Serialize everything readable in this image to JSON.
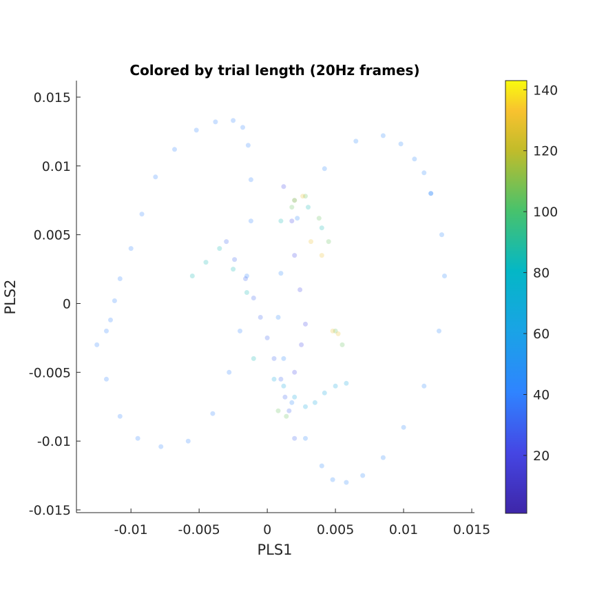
{
  "chart_data": {
    "type": "scatter",
    "title": "Colored by trial length (20Hz frames)",
    "xlabel": "PLS1",
    "ylabel": "PLS2",
    "xlim": [
      -0.014,
      0.0152
    ],
    "ylim": [
      -0.0152,
      0.0162
    ],
    "x_ticks": [
      -0.01,
      -0.005,
      0,
      0.005,
      0.01,
      0.015
    ],
    "x_tick_labels": [
      "-0.01",
      "-0.005",
      "0",
      "0.005",
      "0.01",
      "0.015"
    ],
    "y_ticks": [
      -0.015,
      -0.01,
      -0.005,
      0,
      0.005,
      0.01,
      0.015
    ],
    "y_tick_labels": [
      "-0.015",
      "-0.01",
      "-0.005",
      "0",
      "0.005",
      "0.01",
      "0.015"
    ],
    "colorbar": {
      "colormap": "parula",
      "range": [
        1,
        143
      ],
      "ticks": [
        20,
        40,
        60,
        80,
        100,
        120,
        140
      ],
      "tick_labels": [
        "20",
        "40",
        "60",
        "80",
        "100",
        "120",
        "140"
      ]
    },
    "marker_alpha": 0.25,
    "grid": false,
    "series": [
      {
        "trial_length": 40,
        "x": [
          -0.0125,
          -0.0118,
          -0.0108,
          -0.0095,
          -0.0078,
          -0.0058,
          -0.004,
          -0.0028,
          -0.002,
          -0.0015,
          -0.0012,
          -0.0012,
          -0.0014,
          -0.0018,
          -0.0025,
          -0.0038,
          -0.0052,
          -0.0068,
          -0.0082,
          -0.0092,
          -0.01,
          -0.0108,
          -0.0112,
          -0.0115,
          -0.0118
        ],
        "y": [
          -0.003,
          -0.0055,
          -0.0082,
          -0.0098,
          -0.0104,
          -0.01,
          -0.008,
          -0.005,
          -0.002,
          0.002,
          0.006,
          0.009,
          0.0115,
          0.0128,
          0.0133,
          0.0132,
          0.0126,
          0.0112,
          0.0092,
          0.0065,
          0.004,
          0.0018,
          0.0002,
          -0.0012,
          -0.002
        ]
      },
      {
        "trial_length": 44,
        "x": [
          0.012,
          0.0128,
          0.013,
          0.0126,
          0.0115,
          0.01,
          0.0085,
          0.007,
          0.0058,
          0.0048,
          0.004,
          0.0028,
          0.0018,
          0.0012,
          0.0008,
          0.001,
          0.0022,
          0.0042,
          0.0065,
          0.0085,
          0.0098,
          0.0108,
          0.0115,
          0.012
        ],
        "y": [
          0.008,
          0.005,
          0.002,
          -0.002,
          -0.006,
          -0.009,
          -0.0112,
          -0.0125,
          -0.013,
          -0.0128,
          -0.0118,
          -0.0098,
          -0.0072,
          -0.004,
          -0.001,
          0.0022,
          0.0062,
          0.0098,
          0.0118,
          0.0122,
          0.0116,
          0.0105,
          0.0095,
          0.008
        ]
      },
      {
        "trial_length": 30,
        "x": [
          -0.003,
          -0.0024,
          -0.0016,
          -0.001,
          -0.0005,
          0,
          0.0005,
          0.001,
          0.0013,
          0.0016,
          0.002
        ],
        "y": [
          0.0045,
          0.0032,
          0.0018,
          0.0004,
          -0.001,
          -0.0025,
          -0.004,
          -0.0055,
          -0.0068,
          -0.0078,
          -0.0098
        ]
      },
      {
        "trial_length": 22,
        "x": [
          0.0012,
          0.0018,
          0.002,
          0.0024,
          0.0028,
          0.0025,
          0.002
        ],
        "y": [
          0.0085,
          0.006,
          0.0035,
          0.001,
          -0.0015,
          -0.003,
          -0.005
        ]
      },
      {
        "trial_length": 65,
        "x": [
          0.0005,
          0.0012,
          0.002,
          0.0028,
          0.0035,
          0.0042,
          0.005,
          0.0058
        ],
        "y": [
          -0.0055,
          -0.006,
          -0.0068,
          -0.0075,
          -0.0072,
          -0.0065,
          -0.006,
          -0.0058
        ]
      },
      {
        "trial_length": 85,
        "x": [
          -0.0055,
          -0.0045,
          -0.0035,
          -0.0025,
          -0.0015,
          -0.001,
          0.001,
          0.002,
          0.003,
          0.004
        ],
        "y": [
          0.002,
          0.003,
          0.004,
          0.0025,
          0.0008,
          -0.004,
          0.006,
          0.0075,
          0.007,
          0.0055
        ]
      },
      {
        "trial_length": 105,
        "x": [
          0.0018,
          0.0028,
          0.0038,
          0.0045,
          0.005,
          0.0055,
          0.0008,
          0.0014
        ],
        "y": [
          0.007,
          0.0078,
          0.0062,
          0.0045,
          -0.002,
          -0.003,
          -0.0078,
          -0.0082
        ]
      },
      {
        "trial_length": 130,
        "x": [
          0.002,
          0.0026,
          0.0032,
          0.004,
          0.0048,
          0.0052
        ],
        "y": [
          0.0075,
          0.0078,
          0.0045,
          0.0035,
          -0.002,
          -0.0022
        ]
      }
    ]
  }
}
